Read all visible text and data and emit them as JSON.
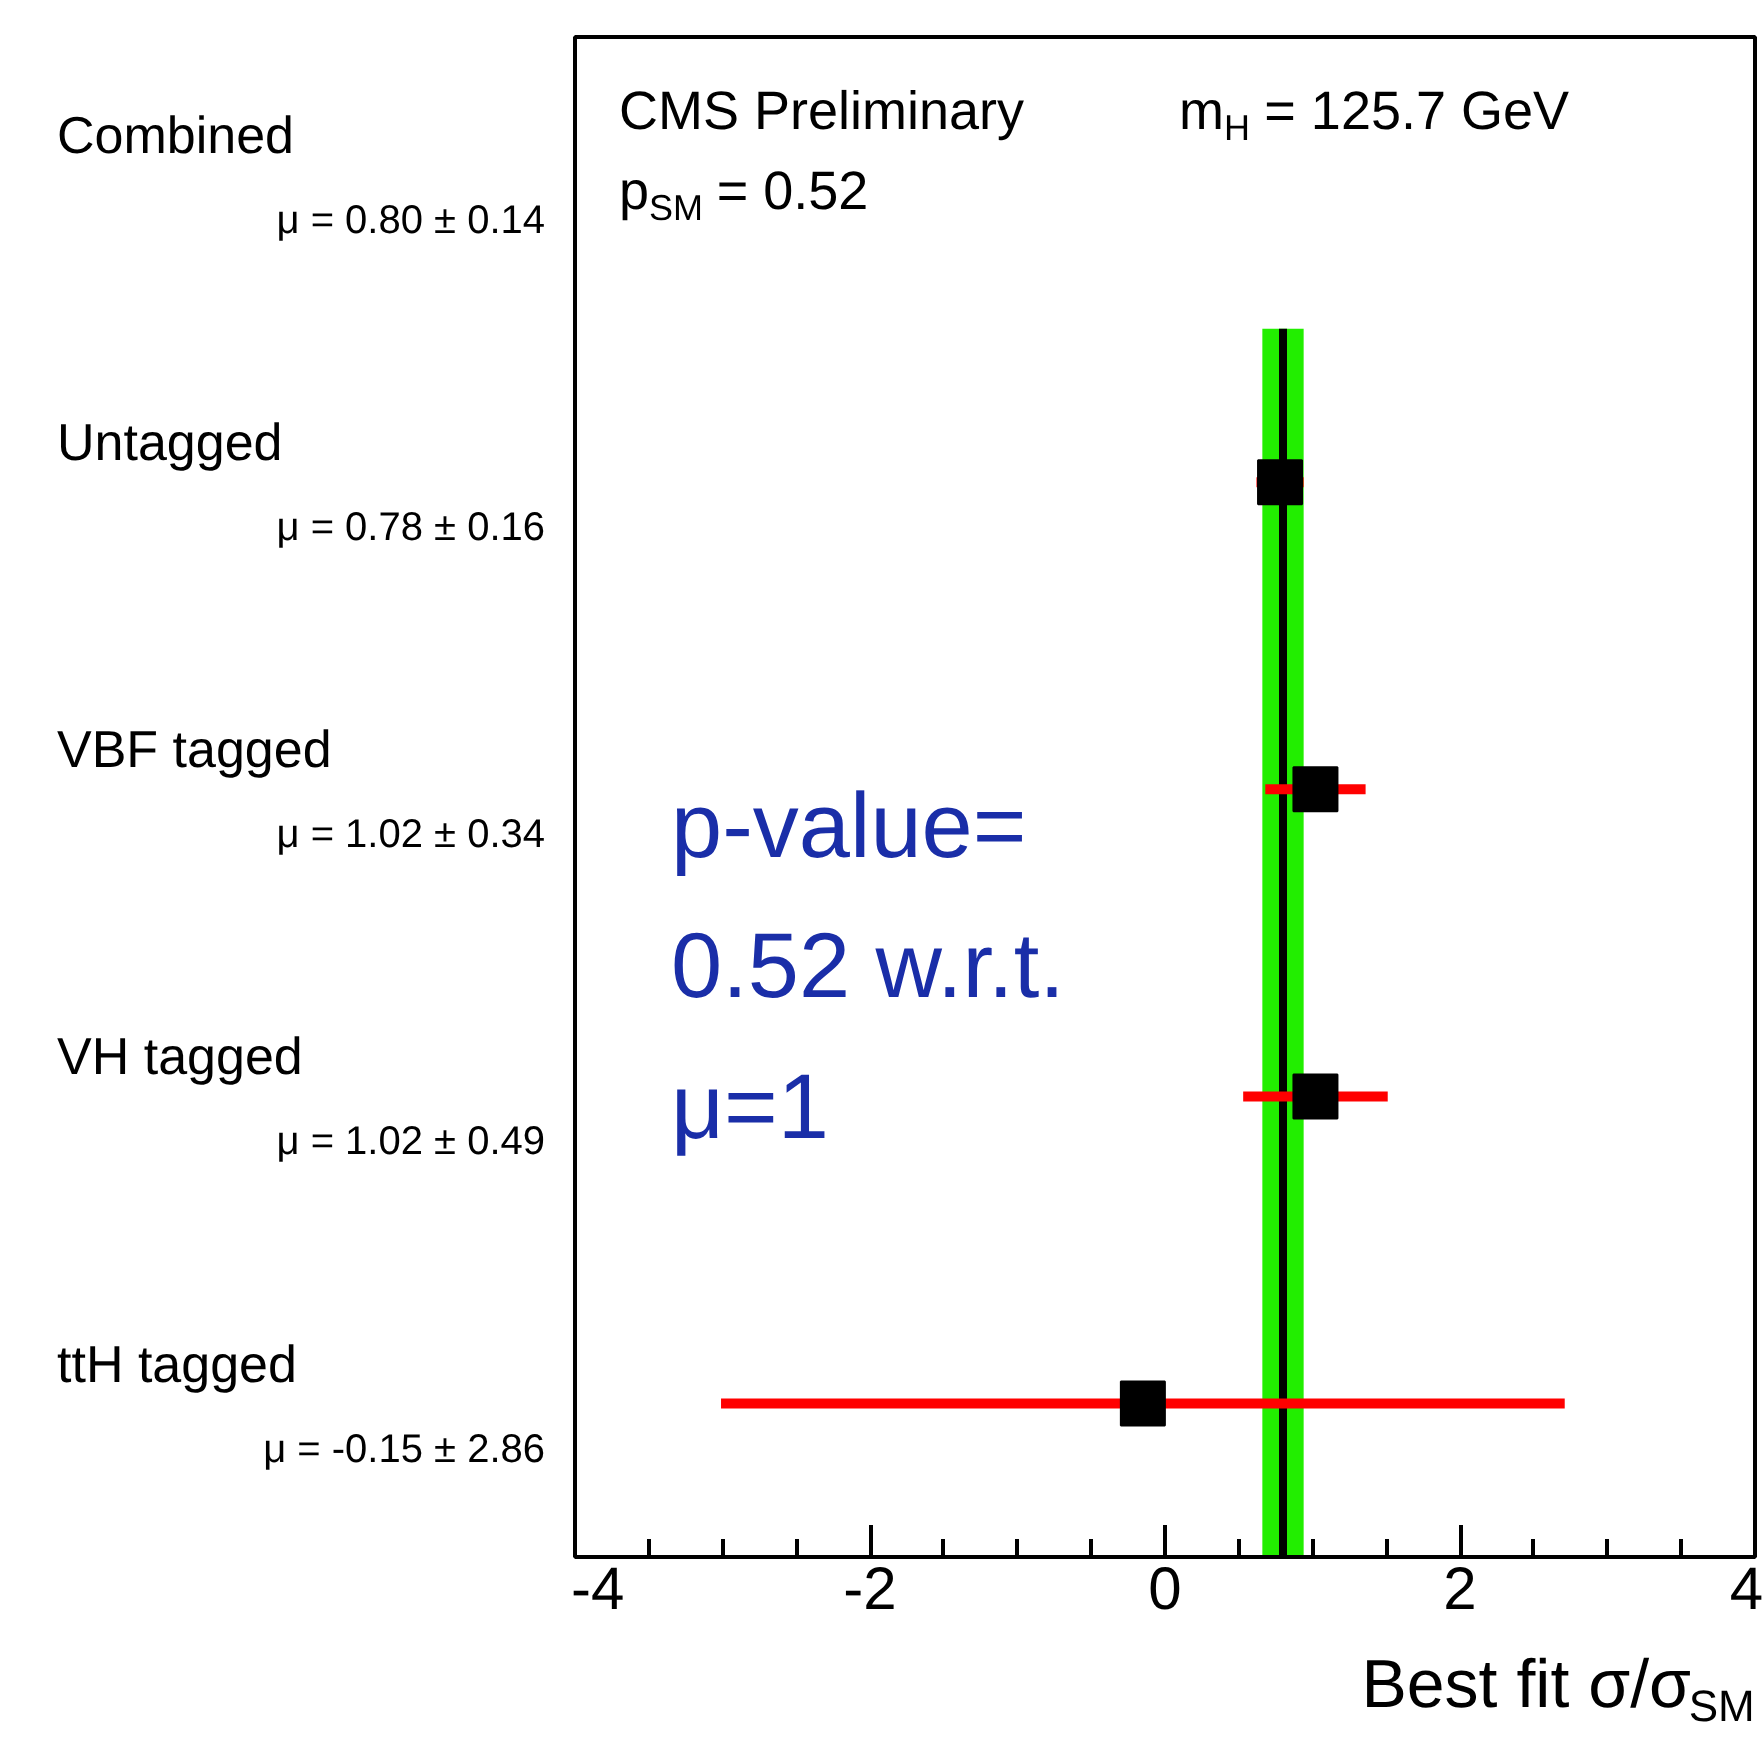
{
  "chart_data": {
    "type": "scatter",
    "orientation": "horizontal",
    "marker": "square",
    "color": "#000000",
    "categories": [
      "Combined",
      "Untagged",
      "VBF tagged",
      "VH tagged",
      "ttH tagged"
    ],
    "values": [
      null,
      0.78,
      1.02,
      1.02,
      -0.15
    ],
    "errors": [
      null,
      0.16,
      0.34,
      0.49,
      2.86
    ],
    "value_labels": [
      "μ = 0.80 ± 0.14",
      "μ = 0.78 ± 0.16",
      "μ = 1.02 ± 0.34",
      "μ = 1.02 ± 0.49",
      "μ = -0.15 ± 2.86"
    ],
    "xlim": [
      -4,
      4
    ],
    "xticks": [
      -4,
      {
        "value": -3.5,
        "label": null
      },
      {
        "value": -3,
        "label": null
      },
      {
        "value": -2.5,
        "label": null
      },
      -2,
      {
        "value": -1.5,
        "label": null
      },
      {
        "value": -1,
        "label": null
      },
      {
        "value": -0.5,
        "label": null
      },
      0,
      {
        "value": 0.5,
        "label": null
      },
      {
        "value": 1,
        "label": null
      },
      {
        "value": 1.5,
        "label": null
      },
      2,
      {
        "value": 2.5,
        "label": null
      },
      {
        "value": 3,
        "label": null
      },
      {
        "value": 3.5,
        "label": null
      },
      4
    ],
    "xlabel": "Best fit σ/σ$_{SM}$",
    "ref_lines": [
      {
        "axis": "x",
        "value": 0.8,
        "color": "#000000"
      }
    ],
    "bands": [
      {
        "axis": "x",
        "from": 0.66,
        "to": 0.94,
        "color": "#22ee00"
      }
    ],
    "annotations": [
      "CMS Preliminary",
      "m$_{H}$ = 125.7 GeV",
      "p$_{SM}$ = 0.52",
      "p-value=\n0.52  w.r.t.\nμ=1"
    ]
  }
}
